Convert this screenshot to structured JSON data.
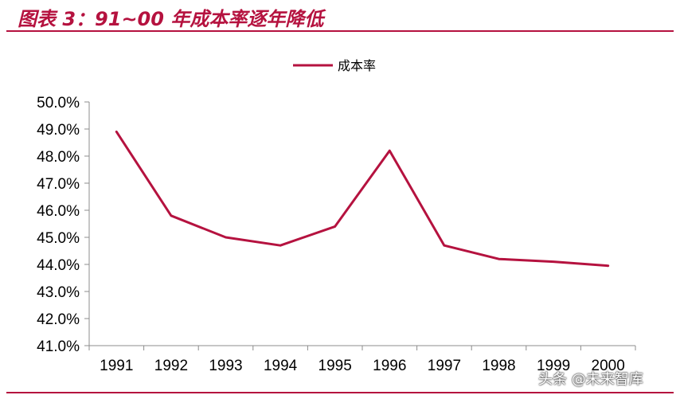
{
  "header": {
    "title": "图表 3：91~00 年成本率逐年降低"
  },
  "watermark": {
    "text": "头条 @未来智库"
  },
  "colors": {
    "accent": "#b5123f",
    "series": "#b5123f",
    "axis": "#8c8c8c"
  },
  "chart_data": {
    "type": "line",
    "title": "",
    "xlabel": "",
    "ylabel": "",
    "x": [
      "1991",
      "1992",
      "1993",
      "1994",
      "1995",
      "1996",
      "1997",
      "1998",
      "1999",
      "2000"
    ],
    "ylim": [
      41.0,
      50.0
    ],
    "yticks": [
      "41.0%",
      "42.0%",
      "43.0%",
      "44.0%",
      "45.0%",
      "46.0%",
      "47.0%",
      "48.0%",
      "49.0%",
      "50.0%"
    ],
    "grid": false,
    "legend_position": "top-center",
    "series": [
      {
        "name": "成本率",
        "values": [
          48.9,
          45.8,
          45.0,
          44.7,
          45.4,
          48.2,
          44.7,
          44.2,
          44.1,
          43.95
        ]
      }
    ]
  }
}
